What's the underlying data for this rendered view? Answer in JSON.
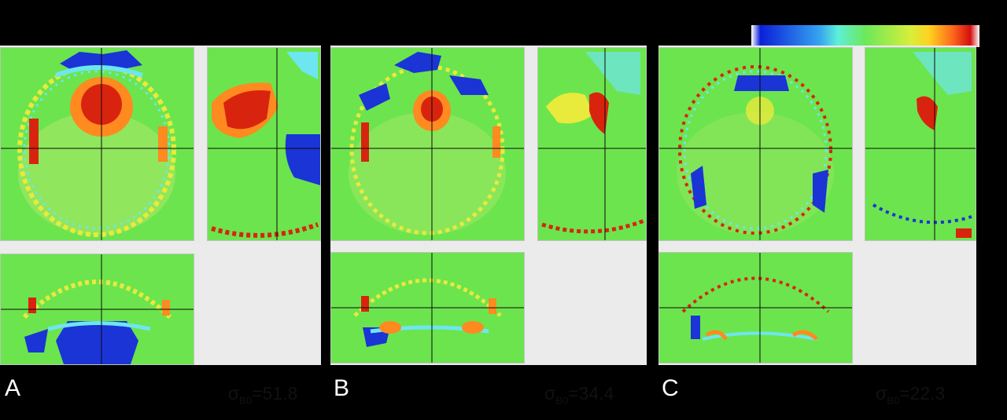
{
  "colorbar": {
    "stops": [
      "#ffffff",
      "#0a1fd8",
      "#36a4f0",
      "#5ef0d8",
      "#6ce85a",
      "#d8ee3a",
      "#ffd21e",
      "#ff6a1c",
      "#d40f0f",
      "#ffffff"
    ]
  },
  "colors": {
    "background_field": "#6ce44e",
    "red": "#d8240e",
    "orange": "#ff8a20",
    "yellow": "#e8ea3c",
    "cyan": "#6ee6f0",
    "blue": "#1a34d6",
    "crosshair": "#0a0a0a"
  },
  "panels": [
    {
      "letter": "A",
      "sigma_symbol": "σ",
      "sigma_sub": "B0",
      "sigma_value": "=51.8"
    },
    {
      "letter": "B",
      "sigma_symbol": "σ",
      "sigma_sub": "B0",
      "sigma_value": "=34.4"
    },
    {
      "letter": "C",
      "sigma_symbol": "σ",
      "sigma_sub": "B0",
      "sigma_value": "=22.3"
    }
  ]
}
